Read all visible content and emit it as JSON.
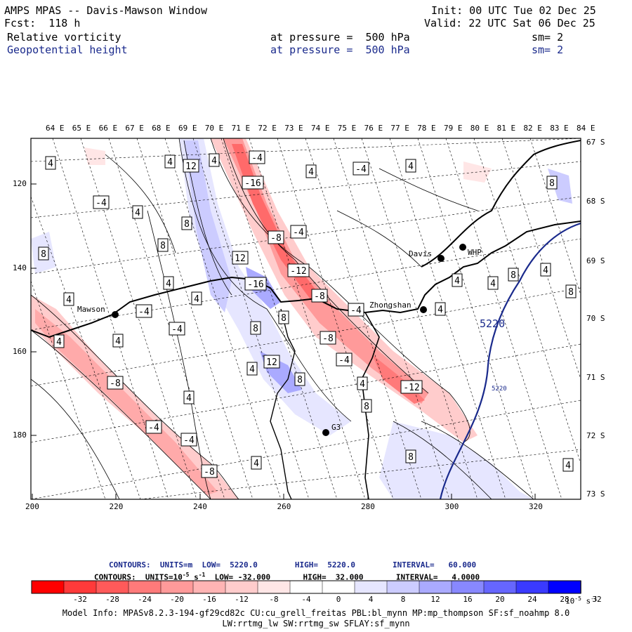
{
  "header": {
    "title": "AMPS MPAS -- Davis-Mawson Window",
    "init": "Init: 00 UTC Tue 02 Dec 25",
    "fcst": "Fcst:  118 h",
    "valid": "Valid: 22 UTC Sat 06 Dec 25",
    "field1": {
      "name": "Relative vorticity",
      "level": "at pressure =  500 hPa",
      "sm": "sm= 2"
    },
    "field2": {
      "name": "Geopotential height",
      "level": "at pressure =  500 hPa",
      "sm": "sm= 2"
    }
  },
  "map": {
    "top_lon_labels": [
      "64 E",
      "65 E",
      "66 E",
      "67 E",
      "68 E",
      "69 E",
      "70 E",
      "71 E",
      "72 E",
      "73 E",
      "74 E",
      "75 E",
      "76 E",
      "77 E",
      "78 E",
      "79 E",
      "80 E",
      "81 E",
      "82 E",
      "83 E",
      "84 E"
    ],
    "right_lat_labels": [
      "67 S",
      "68 S",
      "69 S",
      "70 S",
      "71 S",
      "72 S",
      "73 S"
    ],
    "x_ticks": [
      "200",
      "220",
      "240",
      "260",
      "280",
      "300",
      "320"
    ],
    "y_ticks": [
      "120",
      "140",
      "160",
      "180"
    ],
    "stations": [
      "Mawson",
      "Davis",
      "WHP",
      "Zhongshan",
      "G3"
    ],
    "height_contour_label": "5220",
    "height_contour_label_small": "5220",
    "contour_labels": [
      {
        "v": "4",
        "x": 72,
        "y": 232
      },
      {
        "v": "4",
        "x": 242,
        "y": 230
      },
      {
        "v": "12",
        "x": 272,
        "y": 236
      },
      {
        "v": "4",
        "x": 305,
        "y": 228
      },
      {
        "v": "-4",
        "x": 366,
        "y": 224
      },
      {
        "v": "-16",
        "x": 360,
        "y": 260
      },
      {
        "v": "4",
        "x": 443,
        "y": 244
      },
      {
        "v": "-4",
        "x": 514,
        "y": 240
      },
      {
        "v": "4",
        "x": 585,
        "y": 236
      },
      {
        "v": "8",
        "x": 786,
        "y": 260
      },
      {
        "v": "-4",
        "x": 144,
        "y": 288
      },
      {
        "v": "4",
        "x": 196,
        "y": 302
      },
      {
        "v": "8",
        "x": 266,
        "y": 318
      },
      {
        "v": "-8",
        "x": 393,
        "y": 338
      },
      {
        "v": "-4",
        "x": 425,
        "y": 330
      },
      {
        "v": "8",
        "x": 62,
        "y": 361
      },
      {
        "v": "8",
        "x": 232,
        "y": 349
      },
      {
        "v": "12",
        "x": 342,
        "y": 367
      },
      {
        "v": "-12",
        "x": 425,
        "y": 385
      },
      {
        "v": "-16",
        "x": 364,
        "y": 404
      },
      {
        "v": "4",
        "x": 240,
        "y": 403
      },
      {
        "v": "4",
        "x": 280,
        "y": 425
      },
      {
        "v": "-8",
        "x": 455,
        "y": 421
      },
      {
        "v": "4",
        "x": 98,
        "y": 426
      },
      {
        "v": "-4",
        "x": 205,
        "y": 443
      },
      {
        "v": "8",
        "x": 404,
        "y": 452
      },
      {
        "v": "-4",
        "x": 507,
        "y": 441
      },
      {
        "v": "4",
        "x": 627,
        "y": 440
      },
      {
        "v": "4",
        "x": 651,
        "y": 399
      },
      {
        "v": "4",
        "x": 702,
        "y": 403
      },
      {
        "v": "8",
        "x": 731,
        "y": 391
      },
      {
        "v": "4",
        "x": 777,
        "y": 384
      },
      {
        "v": "8",
        "x": 813,
        "y": 415
      },
      {
        "v": "-4",
        "x": 252,
        "y": 468
      },
      {
        "v": "8",
        "x": 364,
        "y": 467
      },
      {
        "v": "-8",
        "x": 467,
        "y": 481
      },
      {
        "v": "4",
        "x": 84,
        "y": 486
      },
      {
        "v": "4",
        "x": 168,
        "y": 485
      },
      {
        "v": "-4",
        "x": 490,
        "y": 512
      },
      {
        "v": "12",
        "x": 387,
        "y": 515
      },
      {
        "v": "4",
        "x": 359,
        "y": 525
      },
      {
        "v": "8",
        "x": 427,
        "y": 540
      },
      {
        "v": "-8",
        "x": 164,
        "y": 545
      },
      {
        "v": "4",
        "x": 516,
        "y": 546
      },
      {
        "v": "-12",
        "x": 586,
        "y": 551
      },
      {
        "v": "8",
        "x": 522,
        "y": 578
      },
      {
        "v": "4",
        "x": 269,
        "y": 566
      },
      {
        "v": "-4",
        "x": 219,
        "y": 608
      },
      {
        "v": "-4",
        "x": 269,
        "y": 626
      },
      {
        "v": "4",
        "x": 365,
        "y": 659
      },
      {
        "v": "8",
        "x": 585,
        "y": 650
      },
      {
        "v": "4",
        "x": 809,
        "y": 662
      },
      {
        "v": "-8",
        "x": 298,
        "y": 671
      }
    ]
  },
  "footer": {
    "contours1": "CONTOURS:  UNITS=m  LOW=  5220.0        HIGH=  5220.0        INTERVAL=   60.000",
    "contours2_a": "CONTOURS:  UNITS=10",
    "contours2_exp": "-5",
    "contours2_b": " s",
    "contours2_exp2": "-1",
    "contours2_c": "  LOW= -32.000       HIGH=  32.000       INTERVAL=   4.0000",
    "legend_labels": [
      "-32",
      "-28",
      "-24",
      "-20",
      "-16",
      "-12",
      "-8",
      "-4",
      "0",
      "4",
      "8",
      "12",
      "16",
      "20",
      "24",
      "28",
      "32"
    ],
    "legend_unit_a": "10",
    "legend_unit_exp": "-5",
    "legend_unit_b": " s",
    "legend_unit_exp2": "-1",
    "legend_colors": [
      "#ff0000",
      "#ff3a3a",
      "#ff5a5a",
      "#ff7a7a",
      "#ff9a9a",
      "#ffb4b4",
      "#ffcccc",
      "#ffe6e6",
      "#ffffff",
      "#ffffff",
      "#e6e6ff",
      "#ccccff",
      "#aaaaff",
      "#8888ff",
      "#6666ff",
      "#3a3aff",
      "#0000ff"
    ],
    "model_info1": "Model Info: MPASv8.2.3-194-gf29cd82c CU:cu_grell_freitas PBL:bl_mynn MP:mp_thompson SF:sf_noahmp 8.0",
    "model_info2": "LW:rrtmg_lw SW:rrtmg_sw SFLAY:sf_mynn"
  }
}
